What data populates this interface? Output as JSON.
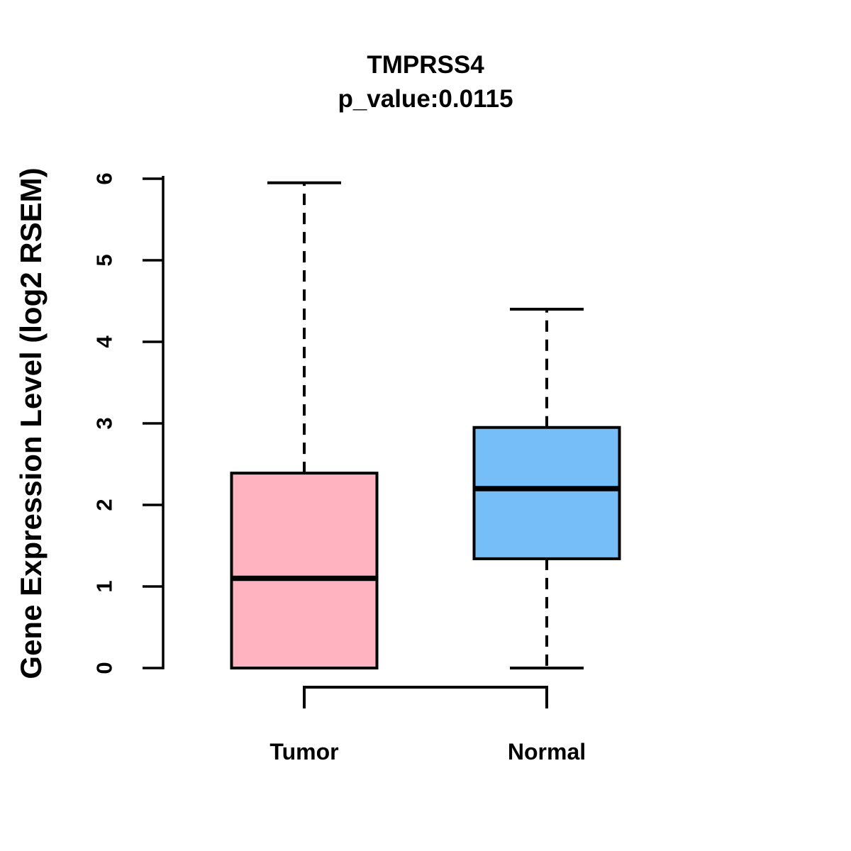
{
  "chart_data": {
    "type": "boxplot",
    "title": "TMPRSS4",
    "subtitle": "p_value:0.0115",
    "p_value": 0.0115,
    "ylabel": "Gene Expression Level (log2 RSEM)",
    "xlabel": "",
    "categories": [
      "Tumor",
      "Normal"
    ],
    "ylim": [
      0,
      6
    ],
    "yticks": [
      0,
      1,
      2,
      3,
      4,
      5,
      6
    ],
    "grid": false,
    "legend": "none",
    "series": [
      {
        "name": "Tumor",
        "color": "#FFB2C0",
        "whisker_low": 0,
        "q1": 0,
        "median": 1.1,
        "q3": 2.39,
        "whisker_high": 5.95
      },
      {
        "name": "Normal",
        "color": "#76BEF8",
        "whisker_low": 0,
        "q1": 1.34,
        "median": 2.2,
        "q3": 2.95,
        "whisker_high": 4.4
      }
    ],
    "significance_bracket": {
      "between": [
        "Tumor",
        "Normal"
      ]
    },
    "box_border_color": "#000000",
    "axis_color": "#000000"
  }
}
